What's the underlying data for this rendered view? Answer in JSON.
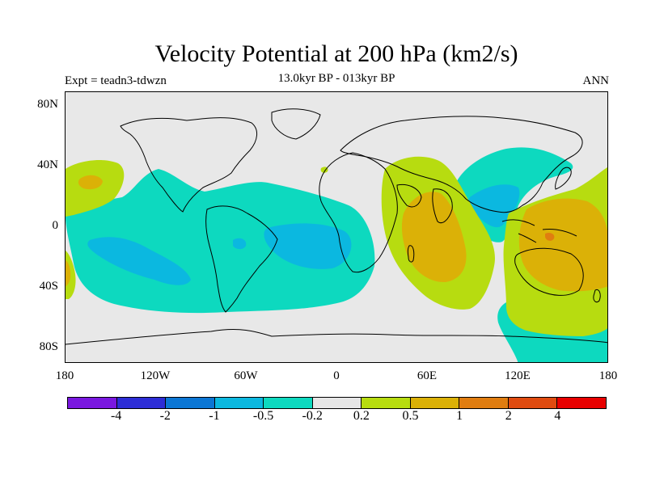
{
  "title": "Velocity Potential at 200 hPa (km2/s)",
  "subtitle": "13.0kyr BP - 013kyr BP",
  "experiment": "Expt = teadn3-tdwzn",
  "season": "ANN",
  "y_axis": {
    "ticks": [
      "80N",
      "40N",
      "0",
      "40S",
      "80S"
    ]
  },
  "x_axis": {
    "ticks": [
      "180",
      "120W",
      "60W",
      "0",
      "60E",
      "120E",
      "180"
    ]
  },
  "colorbar": {
    "colors": [
      "#7a18e0",
      "#2d2dd6",
      "#0b76d4",
      "#0bb8e0",
      "#0dd9bf",
      "#e6e6e6",
      "#b7dc10",
      "#dbb107",
      "#e07d10",
      "#e04b10",
      "#e80000"
    ],
    "labels": [
      "-4",
      "-2",
      "-1",
      "-0.5",
      "-0.2",
      "0.2",
      "0.5",
      "1",
      "2",
      "4"
    ]
  },
  "colors": {
    "background": "#e8e8e8",
    "coast": "#000000"
  }
}
